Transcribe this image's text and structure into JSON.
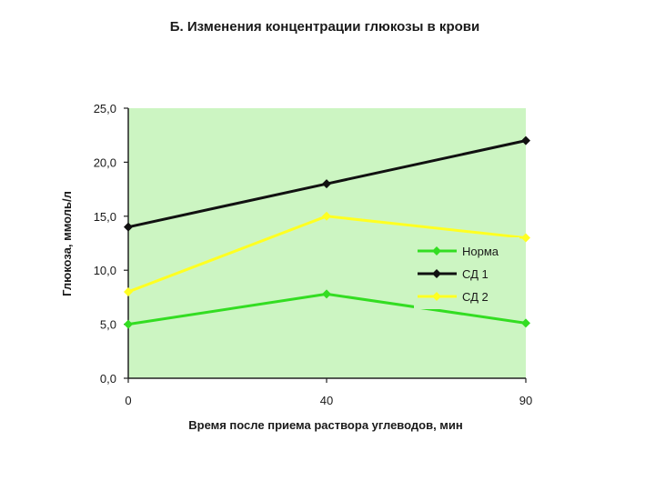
{
  "chart_data": {
    "type": "line",
    "title": "Б. Изменения концентрации глюкозы в крови",
    "xlabel": "Время после приема раствора углеводов, мин",
    "ylabel": "Глюкоза, ммоль/л",
    "categories": [
      "0",
      "40",
      "90"
    ],
    "y_tick_labels": [
      "0,0",
      "5,0",
      "10,0",
      "15,0",
      "20,0",
      "25,0"
    ],
    "y_ticks": [
      0,
      5,
      10,
      15,
      20,
      25
    ],
    "ylim": [
      0,
      25
    ],
    "grid": false,
    "legend_position": "right",
    "plot_background": "#ccf5c2",
    "series": [
      {
        "name": "Норма",
        "values": [
          5.0,
          7.8,
          5.1
        ],
        "color": "#33dd22",
        "marker": "diamond"
      },
      {
        "name": "СД 1",
        "values": [
          14.0,
          18.0,
          22.0
        ],
        "color": "#111111",
        "marker": "diamond"
      },
      {
        "name": "СД 2",
        "values": [
          8.0,
          15.0,
          13.0
        ],
        "color": "#ffff22",
        "marker": "diamond"
      }
    ]
  }
}
